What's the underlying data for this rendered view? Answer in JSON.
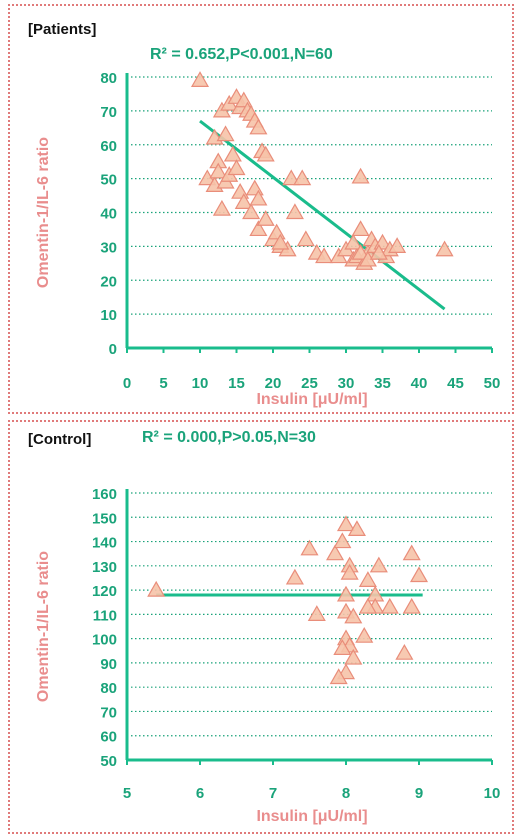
{
  "chart_data": [
    {
      "type": "scatter",
      "panel_label": "[Patients]",
      "stats_annotation": "R² = 0.652,P<0.001,N=60",
      "xlabel": "Insulin [μU/ml]",
      "ylabel": "Omentin-1/IL-6 ratio",
      "xlim": [
        0,
        50
      ],
      "ylim": [
        0,
        80
      ],
      "xticks": [
        0,
        5,
        10,
        15,
        20,
        25,
        30,
        35,
        40,
        45,
        50
      ],
      "yticks": [
        0,
        10,
        20,
        30,
        40,
        50,
        60,
        70,
        80
      ],
      "grid": "horizontal dotted",
      "trendline": {
        "x": [
          10,
          43.5
        ],
        "y": [
          67,
          11.5
        ]
      },
      "points": [
        [
          10,
          79
        ],
        [
          12,
          62
        ],
        [
          12.5,
          55
        ],
        [
          13,
          70
        ],
        [
          13.5,
          63
        ],
        [
          14,
          72
        ],
        [
          14.5,
          57
        ],
        [
          15,
          74
        ],
        [
          15.5,
          71
        ],
        [
          16,
          73
        ],
        [
          16.5,
          70
        ],
        [
          17,
          69
        ],
        [
          17.5,
          67
        ],
        [
          18,
          65
        ],
        [
          18.5,
          58
        ],
        [
          19,
          57
        ],
        [
          11,
          50
        ],
        [
          12,
          48
        ],
        [
          12.5,
          52
        ],
        [
          13,
          41
        ],
        [
          13.5,
          49
        ],
        [
          14,
          51
        ],
        [
          15,
          53
        ],
        [
          15.5,
          46
        ],
        [
          16,
          43
        ],
        [
          17,
          40
        ],
        [
          17.5,
          47
        ],
        [
          18,
          44
        ],
        [
          18,
          35
        ],
        [
          19,
          38
        ],
        [
          20,
          32
        ],
        [
          20.5,
          34
        ],
        [
          21,
          30
        ],
        [
          22,
          29
        ],
        [
          22.5,
          50
        ],
        [
          23,
          40
        ],
        [
          24,
          50
        ],
        [
          24.5,
          32
        ],
        [
          26,
          28
        ],
        [
          27,
          27
        ],
        [
          29,
          27
        ],
        [
          30,
          29
        ],
        [
          31,
          26
        ],
        [
          31.5,
          27
        ],
        [
          32,
          50.5
        ],
        [
          32,
          35
        ],
        [
          32.5,
          25
        ],
        [
          33,
          28
        ],
        [
          33.5,
          32
        ],
        [
          34,
          30
        ],
        [
          35,
          31
        ],
        [
          35.5,
          27
        ],
        [
          36,
          29
        ],
        [
          37,
          30
        ],
        [
          31,
          31
        ],
        [
          32,
          28
        ],
        [
          33,
          26
        ],
        [
          34.5,
          28
        ],
        [
          43.5,
          29
        ],
        [
          21,
          31
        ]
      ]
    },
    {
      "type": "scatter",
      "panel_label": "[Control]",
      "stats_annotation": "R² = 0.000,P>0.05,N=30",
      "xlabel": "Insulin [μU/ml]",
      "ylabel": "Omentin-1/IL-6 ratio",
      "xlim": [
        5,
        10
      ],
      "ylim": [
        50,
        160
      ],
      "xticks": [
        5,
        6,
        7,
        8,
        9,
        10
      ],
      "yticks": [
        50,
        60,
        70,
        80,
        90,
        100,
        110,
        120,
        130,
        140,
        150,
        160
      ],
      "grid": "horizontal dotted",
      "trendline": {
        "x": [
          5.4,
          9.05
        ],
        "y": [
          118,
          118
        ]
      },
      "points": [
        [
          5.4,
          120
        ],
        [
          7.3,
          125
        ],
        [
          7.5,
          137
        ],
        [
          7.6,
          110
        ],
        [
          7.85,
          135
        ],
        [
          7.95,
          140
        ],
        [
          8.0,
          147
        ],
        [
          8.05,
          130
        ],
        [
          8.05,
          127
        ],
        [
          8.15,
          145
        ],
        [
          8.3,
          124
        ],
        [
          8.4,
          118
        ],
        [
          8.4,
          113
        ],
        [
          8.45,
          130
        ],
        [
          8.6,
          113
        ],
        [
          8.9,
          135
        ],
        [
          9.0,
          126
        ],
        [
          8.9,
          113
        ],
        [
          8.8,
          94
        ],
        [
          8.0,
          111
        ],
        [
          8.1,
          109
        ],
        [
          8.25,
          101
        ],
        [
          8.0,
          100
        ],
        [
          8.05,
          97
        ],
        [
          7.95,
          96
        ],
        [
          8.1,
          92
        ],
        [
          8.0,
          86
        ],
        [
          7.9,
          84
        ],
        [
          8.3,
          113
        ],
        [
          8.0,
          118
        ]
      ]
    }
  ],
  "colors": {
    "axis": "#1abc8c",
    "tick_text": "#1aa37a",
    "axis_label": "#e98d8d",
    "marker_fill": "#f6c3a8",
    "marker_stroke": "#e98d7a",
    "trendline": "#1abc8c",
    "grid": "#1aa37a",
    "border": "#e07a7a"
  }
}
